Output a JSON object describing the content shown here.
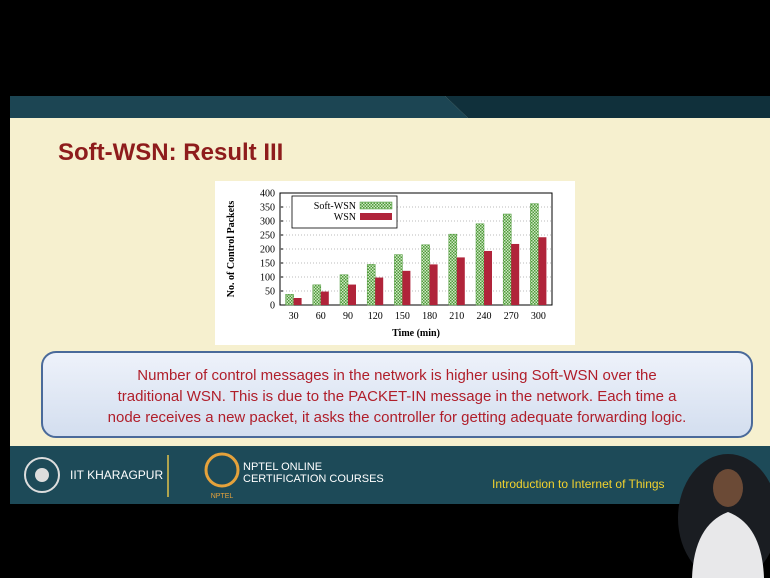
{
  "slide": {
    "title": "Soft-WSN: Result III",
    "caption": [
      "Number of control messages in the network is higher using Soft-WSN over the",
      "traditional WSN. This is due to the PACKET-IN message in the network. Each time a",
      "node receives a new packet, it asks the controller for getting adequate forwarding logic."
    ],
    "footer": {
      "institute": "IIT KHARAGPUR",
      "nptel": [
        "NPTEL ONLINE",
        "CERTIFICATION COURSES"
      ],
      "logo_text": "NPTEL",
      "course": "Introduction to Internet of Things"
    }
  },
  "chart_data": {
    "type": "bar",
    "x_label": "Time (min)",
    "y_label": "No. of Control Packets",
    "categories": [
      "30",
      "60",
      "90",
      "120",
      "150",
      "180",
      "210",
      "240",
      "270",
      "300"
    ],
    "series": [
      {
        "name": "Soft-WSN",
        "color": "#4f9a3a",
        "values": [
          38,
          72,
          108,
          145,
          180,
          215,
          253,
          290,
          325,
          362
        ]
      },
      {
        "name": "WSN",
        "color": "#b0243a",
        "values": [
          25,
          48,
          73,
          98,
          122,
          145,
          170,
          193,
          218,
          242
        ]
      }
    ],
    "ylim": [
      0,
      400
    ],
    "yticks": [
      0,
      50,
      100,
      150,
      200,
      250,
      300,
      350,
      400
    ],
    "grid": true,
    "legend": "top-left"
  }
}
